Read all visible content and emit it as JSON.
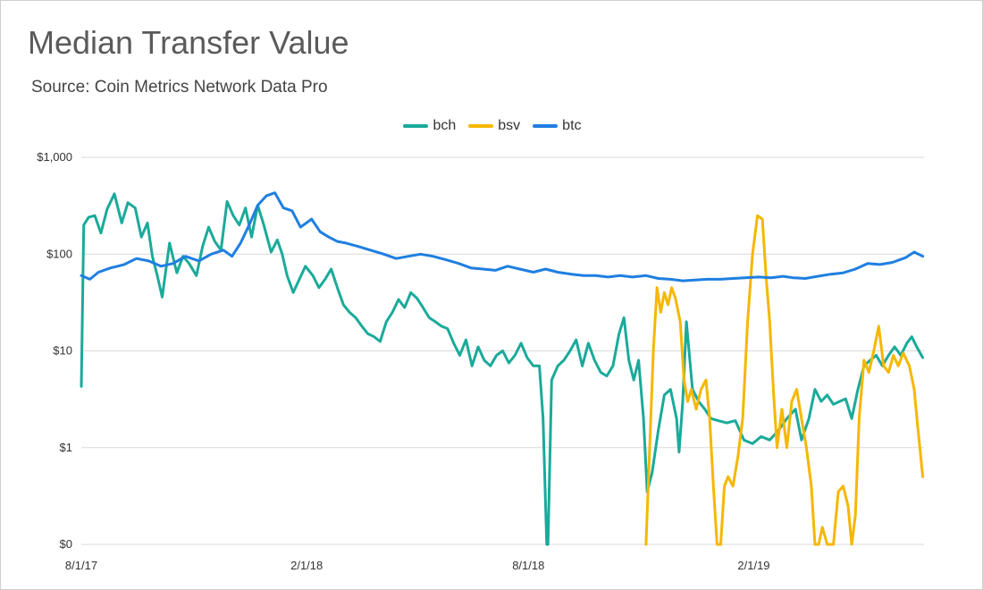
{
  "title": "Median Transfer Value",
  "subtitle": "Source: Coin Metrics Network Data Pro",
  "chart_data": {
    "type": "line",
    "title": "Median Transfer Value",
    "subtitle": "Source: Coin Metrics Network Data Pro",
    "xlabel": "",
    "ylabel": "",
    "y_scale": "log",
    "grid": true,
    "legend_position": "top-center",
    "xlim": [
      "2017-08-01",
      "2019-06-20"
    ],
    "ylim": [
      "$0",
      "$1,000"
    ],
    "x_ticks": [
      {
        "label": "8/1/17",
        "date": "2017-08-01"
      },
      {
        "label": "2/1/18",
        "date": "2018-02-01"
      },
      {
        "label": "8/1/18",
        "date": "2018-08-01"
      },
      {
        "label": "2/1/19",
        "date": "2019-02-01"
      }
    ],
    "y_ticks": [
      {
        "label": "$0",
        "value": 0.1
      },
      {
        "label": "$1",
        "value": 1
      },
      {
        "label": "$10",
        "value": 10
      },
      {
        "label": "$100",
        "value": 100
      },
      {
        "label": "$1,000",
        "value": 1000
      }
    ],
    "series": [
      {
        "name": "bch",
        "color": "#1aaa9a",
        "points": [
          [
            "2017-08-01",
            4.3
          ],
          [
            "2017-08-03",
            200
          ],
          [
            "2017-08-07",
            240
          ],
          [
            "2017-08-12",
            250
          ],
          [
            "2017-08-17",
            165
          ],
          [
            "2017-08-22",
            290
          ],
          [
            "2017-08-28",
            420
          ],
          [
            "2017-09-03",
            210
          ],
          [
            "2017-09-08",
            340
          ],
          [
            "2017-09-14",
            300
          ],
          [
            "2017-09-19",
            150
          ],
          [
            "2017-09-24",
            210
          ],
          [
            "2017-09-28",
            95
          ],
          [
            "2017-10-02",
            60
          ],
          [
            "2017-10-06",
            36
          ],
          [
            "2017-10-12",
            130
          ],
          [
            "2017-10-18",
            64
          ],
          [
            "2017-10-23",
            95
          ],
          [
            "2017-10-28",
            80
          ],
          [
            "2017-11-03",
            60
          ],
          [
            "2017-11-08",
            120
          ],
          [
            "2017-11-13",
            190
          ],
          [
            "2017-11-18",
            135
          ],
          [
            "2017-11-23",
            110
          ],
          [
            "2017-11-28",
            350
          ],
          [
            "2017-12-03",
            250
          ],
          [
            "2017-12-08",
            200
          ],
          [
            "2017-12-13",
            300
          ],
          [
            "2017-12-18",
            150
          ],
          [
            "2017-12-23",
            320
          ],
          [
            "2017-12-28",
            200
          ],
          [
            "2018-01-03",
            105
          ],
          [
            "2018-01-08",
            140
          ],
          [
            "2018-01-12",
            100
          ],
          [
            "2018-01-16",
            60
          ],
          [
            "2018-01-21",
            40
          ],
          [
            "2018-01-26",
            55
          ],
          [
            "2018-01-31",
            75
          ],
          [
            "2018-02-06",
            60
          ],
          [
            "2018-02-11",
            45
          ],
          [
            "2018-02-16",
            55
          ],
          [
            "2018-02-21",
            70
          ],
          [
            "2018-02-26",
            45
          ],
          [
            "2018-03-03",
            30
          ],
          [
            "2018-03-08",
            25
          ],
          [
            "2018-03-13",
            22
          ],
          [
            "2018-03-18",
            18
          ],
          [
            "2018-03-23",
            15
          ],
          [
            "2018-03-28",
            14
          ],
          [
            "2018-04-02",
            12.5
          ],
          [
            "2018-04-07",
            20
          ],
          [
            "2018-04-12",
            25
          ],
          [
            "2018-04-17",
            34
          ],
          [
            "2018-04-22",
            28
          ],
          [
            "2018-04-27",
            40
          ],
          [
            "2018-05-02",
            35
          ],
          [
            "2018-05-07",
            28
          ],
          [
            "2018-05-12",
            22
          ],
          [
            "2018-05-17",
            20
          ],
          [
            "2018-05-22",
            18
          ],
          [
            "2018-05-27",
            17
          ],
          [
            "2018-06-01",
            12
          ],
          [
            "2018-06-06",
            9
          ],
          [
            "2018-06-11",
            13
          ],
          [
            "2018-06-16",
            7
          ],
          [
            "2018-06-21",
            11
          ],
          [
            "2018-06-26",
            8
          ],
          [
            "2018-07-01",
            7
          ],
          [
            "2018-07-06",
            9
          ],
          [
            "2018-07-11",
            10
          ],
          [
            "2018-07-16",
            7.5
          ],
          [
            "2018-07-21",
            9
          ],
          [
            "2018-07-26",
            12
          ],
          [
            "2018-07-31",
            8.5
          ],
          [
            "2018-08-05",
            7
          ],
          [
            "2018-08-10",
            7
          ],
          [
            "2018-08-13",
            2
          ],
          [
            "2018-08-16",
            0.1
          ],
          [
            "2018-08-17",
            0.1
          ],
          [
            "2018-08-20",
            5
          ],
          [
            "2018-08-25",
            7
          ],
          [
            "2018-08-30",
            8
          ],
          [
            "2018-09-04",
            10
          ],
          [
            "2018-09-09",
            13
          ],
          [
            "2018-09-14",
            7
          ],
          [
            "2018-09-19",
            12
          ],
          [
            "2018-09-24",
            8
          ],
          [
            "2018-09-29",
            6
          ],
          [
            "2018-10-04",
            5.5
          ],
          [
            "2018-10-09",
            7
          ],
          [
            "2018-10-14",
            15
          ],
          [
            "2018-10-18",
            22
          ],
          [
            "2018-10-22",
            8
          ],
          [
            "2018-10-26",
            5
          ],
          [
            "2018-10-30",
            8
          ],
          [
            "2018-11-03",
            2
          ],
          [
            "2018-11-06",
            0.35
          ],
          [
            "2018-11-10",
            0.55
          ],
          [
            "2018-11-15",
            1.5
          ],
          [
            "2018-11-20",
            3.5
          ],
          [
            "2018-11-25",
            4
          ],
          [
            "2018-11-30",
            2
          ],
          [
            "2018-12-02",
            0.9
          ],
          [
            "2018-12-05",
            3
          ],
          [
            "2018-12-08",
            20
          ],
          [
            "2018-12-13",
            4
          ],
          [
            "2018-12-18",
            3
          ],
          [
            "2018-12-23",
            2.5
          ],
          [
            "2018-12-28",
            2
          ],
          [
            "2019-01-03",
            1.9
          ],
          [
            "2019-01-10",
            1.8
          ],
          [
            "2019-01-17",
            1.9
          ],
          [
            "2019-01-24",
            1.2
          ],
          [
            "2019-01-31",
            1.1
          ],
          [
            "2019-02-07",
            1.3
          ],
          [
            "2019-02-14",
            1.2
          ],
          [
            "2019-02-21",
            1.5
          ],
          [
            "2019-02-28",
            2
          ],
          [
            "2019-03-07",
            2.5
          ],
          [
            "2019-03-12",
            1.2
          ],
          [
            "2019-03-18",
            2
          ],
          [
            "2019-03-23",
            4
          ],
          [
            "2019-03-28",
            3
          ],
          [
            "2019-04-02",
            3.5
          ],
          [
            "2019-04-07",
            2.8
          ],
          [
            "2019-04-12",
            3
          ],
          [
            "2019-04-17",
            3.2
          ],
          [
            "2019-04-22",
            2
          ],
          [
            "2019-04-27",
            4
          ],
          [
            "2019-05-02",
            7
          ],
          [
            "2019-05-07",
            8
          ],
          [
            "2019-05-12",
            9
          ],
          [
            "2019-05-17",
            7
          ],
          [
            "2019-05-22",
            9
          ],
          [
            "2019-05-27",
            11
          ],
          [
            "2019-06-01",
            9
          ],
          [
            "2019-06-06",
            12
          ],
          [
            "2019-06-10",
            14
          ],
          [
            "2019-06-14",
            11
          ],
          [
            "2019-06-19",
            8.5
          ]
        ]
      },
      {
        "name": "bsv",
        "color": "#f5b700",
        "points": [
          [
            "2018-11-05",
            0.1
          ],
          [
            "2018-11-08",
            1
          ],
          [
            "2018-11-11",
            10
          ],
          [
            "2018-11-14",
            45
          ],
          [
            "2018-11-17",
            25
          ],
          [
            "2018-11-20",
            40
          ],
          [
            "2018-11-23",
            30
          ],
          [
            "2018-11-26",
            45
          ],
          [
            "2018-11-29",
            35
          ],
          [
            "2018-12-03",
            20
          ],
          [
            "2018-12-06",
            5
          ],
          [
            "2018-12-09",
            3
          ],
          [
            "2018-12-12",
            4
          ],
          [
            "2018-12-16",
            2.5
          ],
          [
            "2018-12-20",
            4
          ],
          [
            "2018-12-24",
            5
          ],
          [
            "2018-12-27",
            2
          ],
          [
            "2018-12-30",
            0.4
          ],
          [
            "2019-01-02",
            0.1
          ],
          [
            "2019-01-05",
            0.1
          ],
          [
            "2019-01-08",
            0.4
          ],
          [
            "2019-01-11",
            0.5
          ],
          [
            "2019-01-15",
            0.4
          ],
          [
            "2019-01-19",
            0.8
          ],
          [
            "2019-01-23",
            2
          ],
          [
            "2019-01-27",
            20
          ],
          [
            "2019-01-31",
            100
          ],
          [
            "2019-02-04",
            250
          ],
          [
            "2019-02-08",
            230
          ],
          [
            "2019-02-11",
            60
          ],
          [
            "2019-02-14",
            20
          ],
          [
            "2019-02-17",
            4
          ],
          [
            "2019-02-20",
            1
          ],
          [
            "2019-02-24",
            2.5
          ],
          [
            "2019-02-28",
            1
          ],
          [
            "2019-03-04",
            3
          ],
          [
            "2019-03-08",
            4
          ],
          [
            "2019-03-12",
            2
          ],
          [
            "2019-03-16",
            1
          ],
          [
            "2019-03-20",
            0.4
          ],
          [
            "2019-03-23",
            0.1
          ],
          [
            "2019-03-26",
            0.1
          ],
          [
            "2019-03-29",
            0.15
          ],
          [
            "2019-04-02",
            0.1
          ],
          [
            "2019-04-07",
            0.1
          ],
          [
            "2019-04-11",
            0.35
          ],
          [
            "2019-04-15",
            0.4
          ],
          [
            "2019-04-19",
            0.25
          ],
          [
            "2019-04-22",
            0.1
          ],
          [
            "2019-04-25",
            0.2
          ],
          [
            "2019-04-28",
            2
          ],
          [
            "2019-05-02",
            8
          ],
          [
            "2019-05-06",
            6
          ],
          [
            "2019-05-10",
            10
          ],
          [
            "2019-05-14",
            18
          ],
          [
            "2019-05-18",
            7
          ],
          [
            "2019-05-22",
            6
          ],
          [
            "2019-05-26",
            9
          ],
          [
            "2019-05-30",
            7
          ],
          [
            "2019-06-03",
            9.5
          ],
          [
            "2019-06-08",
            7
          ],
          [
            "2019-06-12",
            4
          ],
          [
            "2019-06-15",
            1.6
          ],
          [
            "2019-06-19",
            0.5
          ]
        ]
      },
      {
        "name": "btc",
        "color": "#1f7fe0",
        "points": [
          [
            "2017-08-01",
            60
          ],
          [
            "2017-08-08",
            55
          ],
          [
            "2017-08-15",
            65
          ],
          [
            "2017-08-25",
            72
          ],
          [
            "2017-09-05",
            78
          ],
          [
            "2017-09-15",
            90
          ],
          [
            "2017-09-25",
            85
          ],
          [
            "2017-10-05",
            75
          ],
          [
            "2017-10-15",
            80
          ],
          [
            "2017-10-25",
            95
          ],
          [
            "2017-11-05",
            85
          ],
          [
            "2017-11-15",
            100
          ],
          [
            "2017-11-25",
            110
          ],
          [
            "2017-12-02",
            95
          ],
          [
            "2017-12-09",
            130
          ],
          [
            "2017-12-16",
            200
          ],
          [
            "2017-12-23",
            320
          ],
          [
            "2017-12-30",
            400
          ],
          [
            "2018-01-06",
            430
          ],
          [
            "2018-01-13",
            300
          ],
          [
            "2018-01-20",
            280
          ],
          [
            "2018-01-27",
            190
          ],
          [
            "2018-02-05",
            230
          ],
          [
            "2018-02-12",
            170
          ],
          [
            "2018-02-19",
            150
          ],
          [
            "2018-02-26",
            135
          ],
          [
            "2018-03-05",
            130
          ],
          [
            "2018-03-15",
            120
          ],
          [
            "2018-03-25",
            110
          ],
          [
            "2018-04-05",
            100
          ],
          [
            "2018-04-15",
            90
          ],
          [
            "2018-04-25",
            95
          ],
          [
            "2018-05-05",
            100
          ],
          [
            "2018-05-15",
            95
          ],
          [
            "2018-05-25",
            88
          ],
          [
            "2018-06-05",
            80
          ],
          [
            "2018-06-15",
            72
          ],
          [
            "2018-06-25",
            70
          ],
          [
            "2018-07-05",
            68
          ],
          [
            "2018-07-15",
            75
          ],
          [
            "2018-07-25",
            70
          ],
          [
            "2018-08-05",
            65
          ],
          [
            "2018-08-15",
            70
          ],
          [
            "2018-08-25",
            65
          ],
          [
            "2018-09-05",
            62
          ],
          [
            "2018-09-15",
            60
          ],
          [
            "2018-09-25",
            60
          ],
          [
            "2018-10-05",
            58
          ],
          [
            "2018-10-15",
            60
          ],
          [
            "2018-10-25",
            58
          ],
          [
            "2018-11-05",
            60
          ],
          [
            "2018-11-15",
            56
          ],
          [
            "2018-11-25",
            55
          ],
          [
            "2018-12-05",
            53
          ],
          [
            "2018-12-15",
            54
          ],
          [
            "2018-12-25",
            55
          ],
          [
            "2019-01-05",
            55
          ],
          [
            "2019-01-15",
            56
          ],
          [
            "2019-01-25",
            57
          ],
          [
            "2019-02-05",
            58
          ],
          [
            "2019-02-15",
            57
          ],
          [
            "2019-02-25",
            59
          ],
          [
            "2019-03-05",
            57
          ],
          [
            "2019-03-15",
            56
          ],
          [
            "2019-03-25",
            59
          ],
          [
            "2019-04-05",
            62
          ],
          [
            "2019-04-15",
            64
          ],
          [
            "2019-04-25",
            70
          ],
          [
            "2019-05-05",
            80
          ],
          [
            "2019-05-15",
            78
          ],
          [
            "2019-05-25",
            82
          ],
          [
            "2019-06-05",
            92
          ],
          [
            "2019-06-12",
            105
          ],
          [
            "2019-06-19",
            95
          ]
        ]
      }
    ]
  }
}
